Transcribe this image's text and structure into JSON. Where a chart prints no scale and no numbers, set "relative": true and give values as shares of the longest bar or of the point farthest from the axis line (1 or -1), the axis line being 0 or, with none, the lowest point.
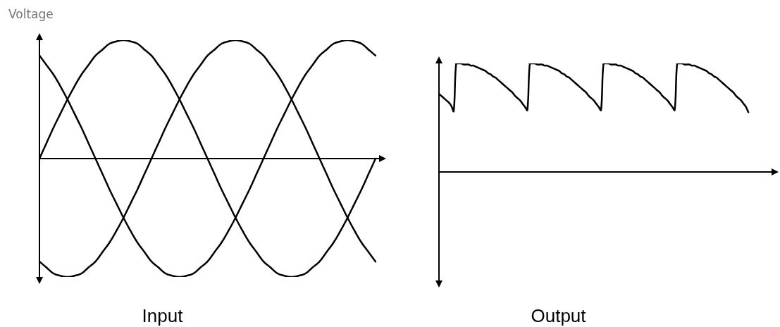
{
  "chart_data": [
    {
      "type": "line",
      "ylabel": "Voltage",
      "xlabel": "Input",
      "relative": true,
      "categories": [
        null,
        null,
        null,
        null,
        null,
        null,
        null,
        null,
        null,
        null,
        null,
        null,
        null,
        null,
        null,
        null,
        null,
        null,
        null,
        null,
        null,
        null,
        null,
        null,
        null,
        null,
        null,
        null,
        null,
        null,
        null,
        null,
        null,
        null,
        null,
        null,
        null,
        null,
        null,
        null,
        null,
        null,
        null,
        null,
        null,
        null,
        null,
        null,
        null
      ],
      "series": [
        {
          "color": "#000000",
          "values": [
            0,
            0.13,
            0.26,
            0.38,
            0.5,
            0.61,
            0.71,
            0.79,
            0.87,
            0.92,
            0.97,
            0.99,
            1,
            0.99,
            0.97,
            0.92,
            0.87,
            0.79,
            0.71,
            0.61,
            0.5,
            0.38,
            0.26,
            0.13,
            0,
            -0.13,
            -0.26,
            -0.38,
            -0.5,
            -0.61,
            -0.71,
            -0.79,
            -0.87,
            -0.92,
            -0.97,
            -0.99,
            -1,
            -0.99,
            -0.97,
            -0.92,
            -0.87,
            -0.79,
            -0.71,
            -0.61,
            -0.5,
            -0.38,
            -0.26,
            -0.13,
            0
          ]
        },
        {
          "color": "#000000",
          "values": [
            0.87,
            0.79,
            0.71,
            0.61,
            0.5,
            0.38,
            0.26,
            0.13,
            0,
            -0.13,
            -0.26,
            -0.38,
            -0.5,
            -0.61,
            -0.71,
            -0.79,
            -0.87,
            -0.92,
            -0.97,
            -0.99,
            -1,
            -0.99,
            -0.97,
            -0.92,
            -0.87,
            -0.79,
            -0.71,
            -0.61,
            -0.5,
            -0.38,
            -0.26,
            -0.13,
            0,
            0.13,
            0.26,
            0.38,
            0.5,
            0.61,
            0.71,
            0.79,
            0.87,
            0.92,
            0.97,
            0.99,
            1,
            0.99,
            0.97,
            0.92,
            0.87
          ]
        },
        {
          "color": "#000000",
          "values": [
            -0.87,
            -0.92,
            -0.97,
            -0.99,
            -1,
            -0.99,
            -0.97,
            -0.92,
            -0.87,
            -0.79,
            -0.71,
            -0.61,
            -0.5,
            -0.38,
            -0.26,
            -0.13,
            0,
            0.13,
            0.26,
            0.38,
            0.5,
            0.61,
            0.71,
            0.79,
            0.87,
            0.92,
            0.97,
            0.99,
            1,
            0.99,
            0.97,
            0.92,
            0.87,
            0.79,
            0.71,
            0.61,
            0.5,
            0.38,
            0.26,
            0.13,
            0,
            -0.13,
            -0.26,
            -0.38,
            -0.5,
            -0.61,
            -0.71,
            -0.79,
            -0.87
          ]
        }
      ]
    },
    {
      "type": "line",
      "xlabel": "Output",
      "relative": true,
      "categories": [
        null,
        null,
        null,
        null,
        null,
        null,
        null,
        null,
        null,
        null,
        null,
        null,
        null,
        null,
        null,
        null,
        null,
        null,
        null,
        null,
        null,
        null,
        null,
        null,
        null,
        null,
        null,
        null,
        null,
        null,
        null,
        null,
        null,
        null,
        null,
        null,
        null,
        null,
        null,
        null,
        null,
        null,
        null,
        null,
        null,
        null,
        null,
        null,
        null,
        null,
        null,
        null,
        null,
        null,
        null,
        null,
        null,
        null,
        null,
        null,
        null,
        null,
        null,
        null,
        null,
        null,
        null,
        null,
        null,
        null,
        null,
        null,
        null,
        null,
        null,
        null,
        null,
        null,
        null,
        null,
        null,
        null,
        null,
        null,
        null,
        null,
        null,
        null,
        null,
        null,
        null,
        null,
        null,
        null,
        null,
        null,
        null,
        null,
        null,
        null,
        null,
        null,
        null,
        null,
        null,
        null,
        null,
        null,
        null,
        null,
        null,
        null,
        null,
        null,
        null,
        null,
        null,
        null,
        null,
        null,
        null,
        null,
        null,
        null,
        null,
        null,
        null,
        null,
        null,
        null,
        null,
        null,
        null,
        null,
        null
      ],
      "series": [
        {
          "color": "#000000",
          "values": [
            0.72,
            0.7,
            0.68,
            0.66,
            0.64,
            0.61,
            0.56,
            1,
            1,
            1,
            0.99,
            0.99,
            0.99,
            0.98,
            0.98,
            0.97,
            0.96,
            0.95,
            0.94,
            0.93,
            0.91,
            0.9,
            0.88,
            0.87,
            0.85,
            0.83,
            0.81,
            0.79,
            0.77,
            0.75,
            0.73,
            0.7,
            0.68,
            0.66,
            0.63,
            0.6,
            0.57,
            1,
            1,
            1,
            0.99,
            0.99,
            0.99,
            0.98,
            0.98,
            0.97,
            0.96,
            0.95,
            0.94,
            0.93,
            0.91,
            0.9,
            0.88,
            0.87,
            0.85,
            0.83,
            0.81,
            0.79,
            0.77,
            0.75,
            0.73,
            0.7,
            0.68,
            0.66,
            0.63,
            0.6,
            0.57,
            1,
            1,
            1,
            0.99,
            0.99,
            0.99,
            0.98,
            0.98,
            0.97,
            0.96,
            0.95,
            0.94,
            0.93,
            0.91,
            0.9,
            0.88,
            0.87,
            0.85,
            0.83,
            0.81,
            0.79,
            0.77,
            0.75,
            0.73,
            0.7,
            0.68,
            0.66,
            0.63,
            0.6,
            0.57,
            1,
            1,
            1,
            0.99,
            0.99,
            0.99,
            0.98,
            0.98,
            0.97,
            0.96,
            0.95,
            0.94,
            0.93,
            0.91,
            0.9,
            0.88,
            0.87,
            0.85,
            0.83,
            0.81,
            0.79,
            0.77,
            0.75,
            0.73,
            0.7,
            0.68,
            0.66,
            0.63,
            0.6,
            0.55,
            null,
            null,
            null,
            null,
            null,
            null,
            null,
            null
          ]
        }
      ]
    }
  ]
}
